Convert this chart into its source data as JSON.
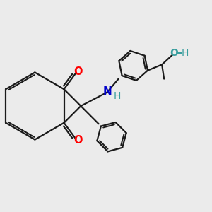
{
  "background_color": "#ebebeb",
  "bond_color": "#1a1a1a",
  "O_color": "#ff0000",
  "N_color": "#0000cc",
  "H_color": "#3a9e9e",
  "line_width": 1.6,
  "figsize": [
    3.0,
    3.0
  ],
  "dpi": 100,
  "xlim": [
    0,
    10
  ],
  "ylim": [
    0,
    10
  ]
}
